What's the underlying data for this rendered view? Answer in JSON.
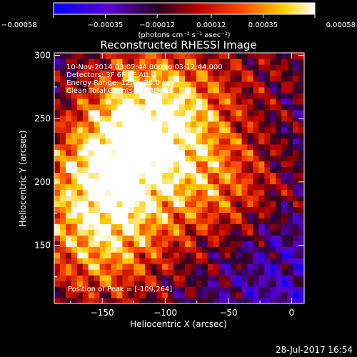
{
  "chart_data": {
    "type": "heatmap",
    "title": "Reconstructed RHESSI Image",
    "xlabel": "Heliocentric X (arcsec)",
    "ylabel": "Heliocentric Y (arcsec)",
    "xlim": [
      -188,
      10
    ],
    "ylim": [
      104,
      302
    ],
    "x_ticks": [
      -150,
      -100,
      -50,
      0
    ],
    "y_ticks": [
      150,
      200,
      250,
      300
    ],
    "x_tick_labels": [
      "−150",
      "−100",
      "−50",
      "0"
    ],
    "y_tick_labels": [
      "150",
      "200",
      "250",
      "300"
    ],
    "colorbar": {
      "range": [
        -0.00058,
        0.00058
      ],
      "ticks": [
        -0.00058,
        -0.00035,
        -0.00012,
        0.00012,
        0.00035,
        0.00058
      ],
      "tick_labels": [
        "−0.00058",
        "−0.00035",
        "−0.00012",
        "0.00012",
        "0.00035",
        "0.00058"
      ],
      "units_text": "(photons cm⁻² s⁻¹ asec⁻²)",
      "colormap": "blue-purple-red-orange-yellow-white"
    },
    "annotations": {
      "time_range": "10-Nov-2014 03:02:44.000 to 03:12:44.000",
      "detectors": "Detectors: 3F 6F 9F  Att 0",
      "energy": "Energy Range: 12.0 - 25.0 keV",
      "clean": "Clean    Total Counts: 6.73E+03",
      "peak": "Position of Peak = [-109,264]"
    },
    "peak_position": [
      -109,
      264
    ],
    "hot_regions": [
      {
        "x": -110,
        "y": 262,
        "level": 1.0
      },
      {
        "x": -140,
        "y": 210,
        "level": 0.95
      },
      {
        "x": -150,
        "y": 150,
        "level": 0.85
      },
      {
        "x": -60,
        "y": 198,
        "level": 0.7
      }
    ]
  },
  "footer": {
    "timestamp": "28-Jul-2017 16:54"
  }
}
